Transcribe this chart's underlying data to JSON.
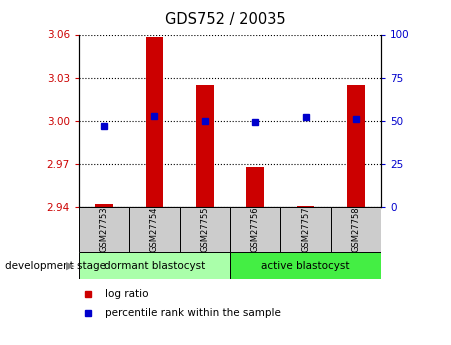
{
  "title": "GDS752 / 20035",
  "samples": [
    "GSM27753",
    "GSM27754",
    "GSM27755",
    "GSM27756",
    "GSM27757",
    "GSM27758"
  ],
  "log_ratio": [
    2.942,
    3.058,
    3.025,
    2.968,
    2.941,
    3.025
  ],
  "percentile_rank": [
    47,
    53,
    50,
    49,
    52,
    51
  ],
  "baseline": 2.94,
  "ylim_left": [
    2.94,
    3.06
  ],
  "ylim_right": [
    0,
    100
  ],
  "yticks_left": [
    2.94,
    2.97,
    3.0,
    3.03,
    3.06
  ],
  "yticks_right": [
    0,
    25,
    50,
    75,
    100
  ],
  "bar_color": "#cc0000",
  "dot_color": "#0000cc",
  "bar_width": 0.35,
  "groups": [
    {
      "label": "dormant blastocyst",
      "samples": [
        0,
        1,
        2
      ],
      "color": "#aaffaa"
    },
    {
      "label": "active blastocyst",
      "samples": [
        3,
        4,
        5
      ],
      "color": "#44ee44"
    }
  ],
  "group_label": "development stage",
  "legend_log_ratio": "log ratio",
  "legend_percentile": "percentile rank within the sample",
  "tick_color_left": "#cc0000",
  "tick_color_right": "#0000cc",
  "sample_bg": "#cccccc"
}
